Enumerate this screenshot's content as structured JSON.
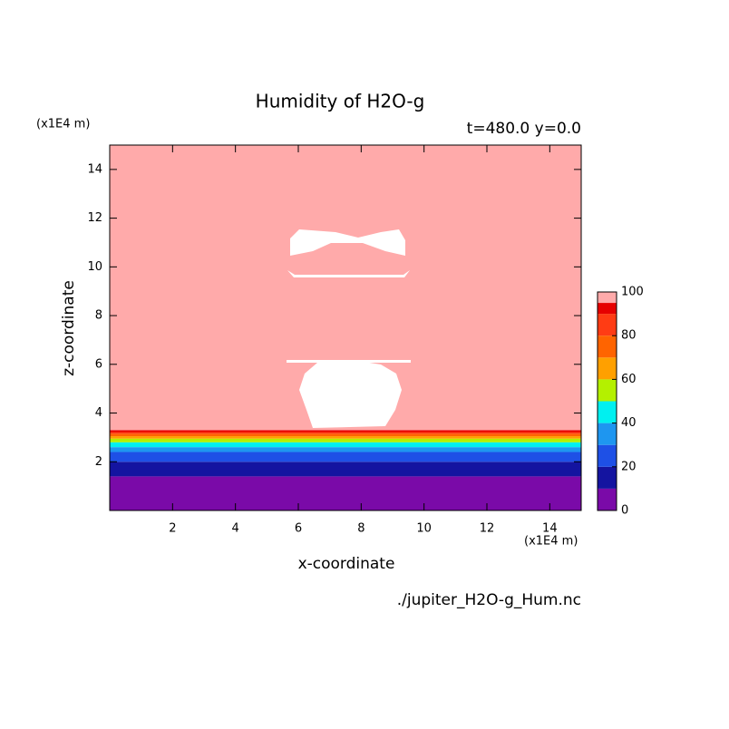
{
  "chart_data": {
    "type": "contour",
    "title": "Humidity of H2O-g",
    "subtitle": "t=480.0 y=0.0",
    "x_label": "x-coordinate",
    "y_label": "z-coordinate",
    "x_unit": "(x1E4 m)",
    "y_unit": "(x1E4 m)",
    "source": "./jupiter_H2O-g_Hum.nc",
    "xlim": [
      0,
      15
    ],
    "ylim": [
      0,
      15
    ],
    "xticks": [
      2,
      4,
      6,
      8,
      10,
      12,
      14
    ],
    "yticks": [
      2,
      4,
      6,
      8,
      10,
      12,
      14
    ],
    "levels": [
      0,
      10,
      20,
      30,
      40,
      50,
      60,
      70,
      80,
      90,
      95,
      100
    ],
    "colors": [
      "#7a0aa8",
      "#1414a0",
      "#1e50e6",
      "#1e96f0",
      "#00f0f0",
      "#b4f000",
      "#ffa000",
      "#ff6400",
      "#ff3c14",
      "#e60000",
      "#ffaaaa"
    ],
    "level_heights": [
      0,
      1.4,
      2.0,
      2.4,
      2.6,
      2.8,
      2.95,
      3.05,
      3.15,
      3.22,
      3.3
    ],
    "colorbar_ticks": [
      0,
      20,
      40,
      60,
      80,
      100
    ]
  }
}
